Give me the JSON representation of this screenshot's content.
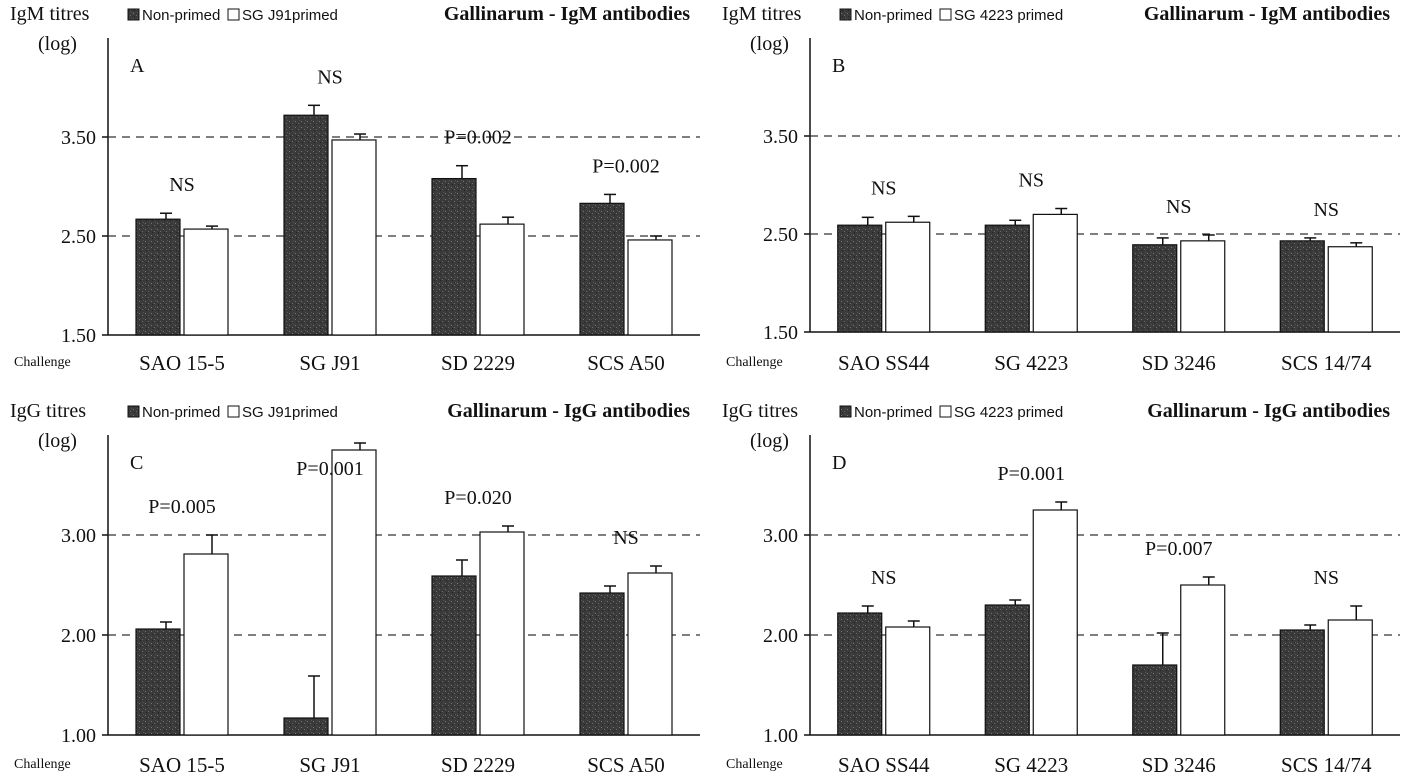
{
  "chart_data": [
    {
      "type": "bar",
      "panel_label": "A",
      "y_label_line1": "IgM titres",
      "y_label_line2": "(log)",
      "legend": {
        "series1": "Non-primed",
        "series2": "SG J91primed"
      },
      "title": "Gallinarum - IgM antibodies",
      "x_prefix": "Challenge",
      "categories": [
        "SAO 15-5",
        "SG J91",
        "SD 2229",
        "SCS A50"
      ],
      "series": [
        {
          "name": "Non-primed",
          "values": [
            2.67,
            3.72,
            3.08,
            2.83
          ],
          "errors": [
            0.06,
            0.1,
            0.13,
            0.09
          ]
        },
        {
          "name": "SG J91primed",
          "values": [
            2.57,
            3.47,
            2.62,
            2.46
          ],
          "errors": [
            0.03,
            0.06,
            0.07,
            0.04
          ]
        }
      ],
      "annotations": [
        "NS",
        "NS",
        "P=0.002",
        "P=0.002"
      ],
      "yticks": [
        "1.50",
        "2.50",
        "3.50"
      ],
      "ytick_values": [
        1.5,
        2.5,
        3.5
      ],
      "ylim": [
        1.5,
        4.5
      ],
      "dashed_lines": [
        2.5,
        3.5
      ]
    },
    {
      "type": "bar",
      "panel_label": "B",
      "y_label_line1": "IgM titres",
      "y_label_line2": "(log)",
      "legend": {
        "series1": "Non-primed",
        "series2": "SG 4223 primed"
      },
      "title": "Gallinarum - IgM antibodies",
      "x_prefix": "Challenge",
      "categories": [
        "SAO SS44",
        "SG 4223",
        "SD 3246",
        "SCS 14/74"
      ],
      "series": [
        {
          "name": "Non-primed",
          "values": [
            2.59,
            2.59,
            2.39,
            2.43
          ],
          "errors": [
            0.08,
            0.05,
            0.07,
            0.03
          ]
        },
        {
          "name": "SG 4223 primed",
          "values": [
            2.62,
            2.7,
            2.43,
            2.37
          ],
          "errors": [
            0.06,
            0.06,
            0.06,
            0.04
          ]
        }
      ],
      "annotations": [
        "NS",
        "NS",
        "NS",
        "NS"
      ],
      "yticks": [
        "1.50",
        "2.50",
        "3.50"
      ],
      "ytick_values": [
        1.5,
        2.5,
        3.5
      ],
      "ylim": [
        1.5,
        4.5
      ],
      "dashed_lines": [
        2.5,
        3.5
      ]
    },
    {
      "type": "bar",
      "panel_label": "C",
      "y_label_line1": "IgG titres",
      "y_label_line2": "(log)",
      "legend": {
        "series1": "Non-primed",
        "series2": "SG J91primed"
      },
      "title": "Gallinarum - IgG antibodies",
      "x_prefix": "Challenge",
      "categories": [
        "SAO 15-5",
        "SG J91",
        "SD 2229",
        "SCS A50"
      ],
      "series": [
        {
          "name": "Non-primed",
          "values": [
            2.06,
            1.17,
            2.59,
            2.42
          ],
          "errors": [
            0.07,
            0.42,
            0.16,
            0.07
          ]
        },
        {
          "name": "SG J91primed",
          "values": [
            2.81,
            3.85,
            3.03,
            2.62
          ],
          "errors": [
            0.19,
            0.07,
            0.06,
            0.07
          ]
        }
      ],
      "annotations": [
        "P=0.005",
        "P=0.001",
        "P=0.020",
        "NS"
      ],
      "yticks": [
        "1.00",
        "2.00",
        "3.00"
      ],
      "ytick_values": [
        1.0,
        2.0,
        3.0
      ],
      "ylim": [
        1.0,
        4.0
      ],
      "dashed_lines": [
        2.0,
        3.0
      ]
    },
    {
      "type": "bar",
      "panel_label": "D",
      "y_label_line1": "IgG titres",
      "y_label_line2": "(log)",
      "legend": {
        "series1": "Non-primed",
        "series2": "SG 4223 primed"
      },
      "title": "Gallinarum - IgG antibodies",
      "x_prefix": "Challenge",
      "categories": [
        "SAO SS44",
        "SG 4223",
        "SD 3246",
        "SCS 14/74"
      ],
      "series": [
        {
          "name": "Non-primed",
          "values": [
            2.22,
            2.3,
            1.7,
            2.05
          ],
          "errors": [
            0.07,
            0.05,
            0.32,
            0.05
          ]
        },
        {
          "name": "SG 4223 primed",
          "values": [
            2.08,
            3.25,
            2.5,
            2.15
          ],
          "errors": [
            0.06,
            0.08,
            0.08,
            0.14
          ]
        }
      ],
      "annotations": [
        "NS",
        "P=0.001",
        "P=0.007",
        "NS"
      ],
      "yticks": [
        "1.00",
        "2.00",
        "3.00"
      ],
      "ytick_values": [
        1.0,
        2.0,
        3.0
      ],
      "ylim": [
        1.0,
        4.0
      ],
      "dashed_lines": [
        2.0,
        3.0
      ]
    }
  ],
  "colors": {
    "non_primed": "#3a3a3a",
    "primed": "#ffffff",
    "axis": "#111111",
    "dashed": "#333333"
  }
}
